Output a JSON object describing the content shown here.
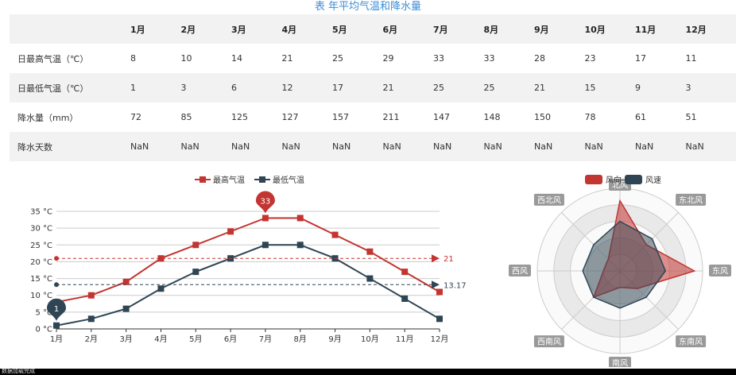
{
  "title": "表 年平均气温和降水量",
  "table": {
    "headers": [
      "1月",
      "2月",
      "3月",
      "4月",
      "5月",
      "6月",
      "7月",
      "8月",
      "9月",
      "10月",
      "11月",
      "12月"
    ],
    "rows": [
      {
        "label": "日最高气温（℃）",
        "values": [
          "8",
          "10",
          "14",
          "21",
          "25",
          "29",
          "33",
          "33",
          "28",
          "23",
          "17",
          "11"
        ]
      },
      {
        "label": "日最低气温（℃）",
        "values": [
          "1",
          "3",
          "6",
          "12",
          "17",
          "21",
          "25",
          "25",
          "21",
          "15",
          "9",
          "3"
        ]
      },
      {
        "label": "降水量（mm）",
        "values": [
          "72",
          "85",
          "125",
          "127",
          "157",
          "211",
          "147",
          "148",
          "150",
          "78",
          "61",
          "51"
        ]
      },
      {
        "label": "降水天数",
        "values": [
          "NaN",
          "NaN",
          "NaN",
          "NaN",
          "NaN",
          "NaN",
          "NaN",
          "NaN",
          "NaN",
          "NaN",
          "NaN",
          "NaN"
        ]
      }
    ]
  },
  "chart_data": [
    {
      "type": "line",
      "categories": [
        "1月",
        "2月",
        "3月",
        "4月",
        "5月",
        "6月",
        "7月",
        "8月",
        "9月",
        "10月",
        "11月",
        "12月"
      ],
      "series": [
        {
          "name": "最高气温",
          "values": [
            8,
            10,
            14,
            21,
            25,
            29,
            33,
            33,
            28,
            23,
            17,
            11
          ],
          "color": "#c23531"
        },
        {
          "name": "最低气温",
          "values": [
            1,
            3,
            6,
            12,
            17,
            21,
            25,
            25,
            21,
            15,
            9,
            3
          ],
          "color": "#2f4554"
        }
      ],
      "yticks": [
        "0 °C",
        "5 °C",
        "10 °C",
        "15 °C",
        "20 °C",
        "25 °C",
        "30 °C",
        "35 °C"
      ],
      "ylim": [
        0,
        35
      ],
      "markpoints": [
        {
          "series": 0,
          "index": 6,
          "value": "33"
        },
        {
          "series": 1,
          "index": 0,
          "value": "1"
        }
      ],
      "marklines": [
        {
          "series": 0,
          "value": 21,
          "label": "21"
        },
        {
          "series": 1,
          "value": 13.17,
          "label": "13.17"
        }
      ],
      "legend_position": "top-center",
      "grid": true
    },
    {
      "type": "radar",
      "indicators": [
        "北风",
        "东北风",
        "东风",
        "东南风",
        "南风",
        "西南风",
        "西风",
        "西北风"
      ],
      "series": [
        {
          "name": "风向",
          "values": [
            0.85,
            0.45,
            0.9,
            0.3,
            0.2,
            0.45,
            0.2,
            0.2
          ],
          "color": "#c23531"
        },
        {
          "name": "风速",
          "values": [
            0.6,
            0.55,
            0.55,
            0.45,
            0.45,
            0.45,
            0.45,
            0.45
          ],
          "color": "#2f4554"
        }
      ],
      "legend_position": "top-center"
    }
  ],
  "footer": "数据加载完成"
}
